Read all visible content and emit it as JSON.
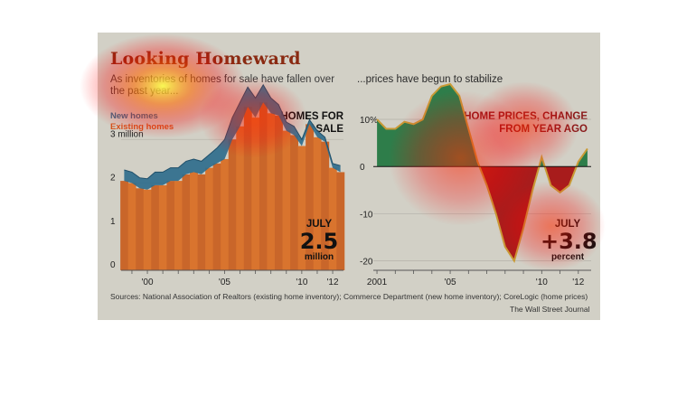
{
  "title": "Looking Homeward",
  "subtitle": "As inventories of homes for sale have fallen over the past year...",
  "right_subtitle": "...prices have begun to stabilize",
  "source": "Sources: National Association of Realtors (existing home inventory); Commerce Department (new home inventory); CoreLogic (home prices)",
  "credit": "The Wall Street Journal",
  "colors": {
    "background": "#d2d0c6",
    "existing_homes": "#d9742e",
    "new_homes": "#2f6c8c",
    "price_positive": "#2e7d4a",
    "price_negative": "#a81c1c",
    "title": "#8a2a12"
  },
  "chart_data": [
    {
      "type": "area",
      "title": "HOMES FOR SALE",
      "legend": [
        "New homes",
        "Existing homes"
      ],
      "ylim": [
        0,
        4
      ],
      "y_ticks": [
        0,
        1,
        2,
        3
      ],
      "y_tick_labels": [
        "0",
        "1",
        "2",
        "3 million"
      ],
      "x_ticks": [
        2000,
        2005,
        2010,
        2012
      ],
      "x_tick_labels": [
        "'00",
        "'05",
        "'10",
        "'12"
      ],
      "xlim": [
        1998.3,
        2012.7
      ],
      "x": [
        1998.5,
        1999,
        1999.5,
        2000,
        2000.5,
        2001,
        2001.5,
        2002,
        2002.5,
        2003,
        2003.5,
        2004,
        2004.5,
        2005,
        2005.5,
        2006,
        2006.5,
        2007,
        2007.5,
        2008,
        2008.5,
        2009,
        2009.5,
        2010,
        2010.5,
        2011,
        2011.5,
        2012,
        2012.5
      ],
      "series": [
        {
          "name": "Existing homes",
          "values": [
            2.05,
            2.0,
            1.88,
            1.85,
            1.95,
            1.95,
            2.05,
            2.05,
            2.2,
            2.25,
            2.2,
            2.35,
            2.45,
            2.55,
            3.0,
            3.3,
            3.75,
            3.5,
            3.85,
            3.6,
            3.55,
            3.2,
            3.1,
            2.85,
            3.35,
            3.05,
            2.95,
            2.35,
            2.25
          ]
        },
        {
          "name": "New homes",
          "values": [
            2.3,
            2.25,
            2.12,
            2.1,
            2.25,
            2.25,
            2.35,
            2.35,
            2.5,
            2.55,
            2.5,
            2.65,
            2.8,
            3.0,
            3.5,
            3.85,
            4.2,
            3.95,
            4.25,
            3.95,
            3.8,
            3.4,
            3.3,
            3.0,
            3.45,
            3.2,
            3.05,
            2.45,
            2.4
          ]
        }
      ],
      "annotation": {
        "label": "JULY",
        "value": "2.5",
        "unit": "million"
      }
    },
    {
      "type": "area",
      "title": "HOME PRICES, CHANGE FROM YEAR AGO",
      "ylim": [
        -22,
        15
      ],
      "y_ticks": [
        10,
        0,
        -10,
        -20
      ],
      "y_tick_labels": [
        "10%",
        "0",
        "-10",
        "-20"
      ],
      "x_ticks": [
        2001,
        2005,
        2010,
        2012
      ],
      "x_tick_labels": [
        "2001",
        "'05",
        "'10",
        "'12"
      ],
      "xlim": [
        2000.8,
        2012.7
      ],
      "x": [
        2001,
        2001.5,
        2002,
        2002.5,
        2003,
        2003.5,
        2004,
        2004.5,
        2005,
        2005.5,
        2006,
        2006.5,
        2007,
        2007.5,
        2008,
        2008.5,
        2009,
        2009.5,
        2010,
        2010.5,
        2011,
        2011.5,
        2012,
        2012.5
      ],
      "series": [
        {
          "name": "",
          "values": [
            10,
            8,
            8,
            9.5,
            9,
            10,
            15,
            17,
            17.5,
            15,
            8,
            1,
            -4,
            -10,
            -17,
            -20,
            -13,
            -5,
            2,
            -4,
            -5.5,
            -4,
            1,
            3.8
          ]
        }
      ],
      "annotation": {
        "label": "JULY",
        "value": "+3.8",
        "unit": "percent"
      }
    }
  ]
}
